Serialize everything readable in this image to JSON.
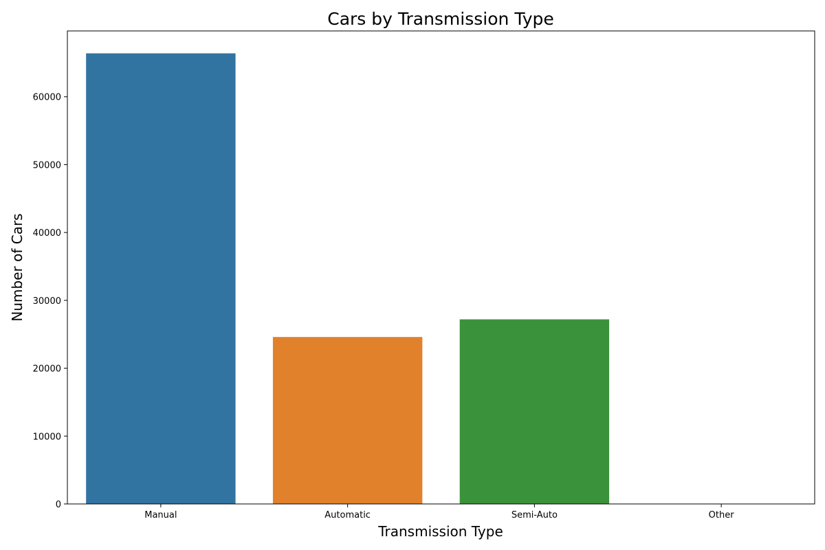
{
  "chart_data": {
    "type": "bar",
    "title": "Cars by Transmission Type",
    "xlabel": "Transmission Type",
    "ylabel": "Number of Cars",
    "categories": [
      "Manual",
      "Automatic",
      "Semi-Auto",
      "Other"
    ],
    "values": [
      66400,
      24600,
      27200,
      10
    ],
    "colors": [
      "#3274a1",
      "#e1812c",
      "#3a923a",
      "#c03d3e"
    ],
    "ylim": [
      0,
      69700
    ],
    "yticks": [
      0,
      10000,
      20000,
      30000,
      40000,
      50000,
      60000
    ],
    "ytick_labels": [
      "0",
      "10000",
      "20000",
      "30000",
      "40000",
      "50000",
      "60000"
    ],
    "grid": false,
    "legend": "none"
  }
}
